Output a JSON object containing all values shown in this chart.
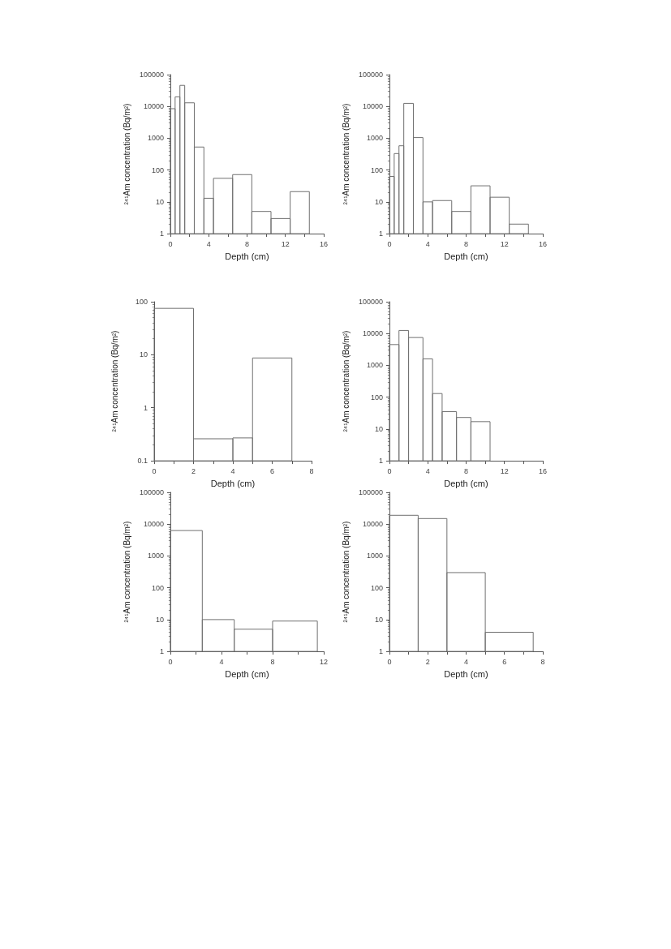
{
  "chart_data": [
    {
      "type": "histogram",
      "xlabel": "Depth (cm)",
      "ylabel": "²⁴¹Am concentration (Bq/m²)",
      "bins": [
        0,
        0.5,
        1,
        1.5,
        2.5,
        3.5,
        4.5,
        6.5,
        8.5,
        10.5,
        12.5,
        14.5
      ],
      "values": [
        8500,
        20000,
        46000,
        13000,
        530,
        13,
        55,
        72,
        5,
        3,
        21
      ],
      "color": "#707070",
      "log": "y",
      "grid": false,
      "xlim": [
        0,
        16
      ],
      "xticks": [
        0,
        {
          "value": 2,
          "label": null
        },
        4,
        {
          "value": 6,
          "label": null
        },
        8,
        {
          "value": 10,
          "label": null
        },
        12,
        {
          "value": 14,
          "label": null
        },
        16
      ],
      "ylim": [
        1,
        100000
      ],
      "yticks": [
        1,
        10,
        100,
        1000,
        10000,
        100000
      ]
    },
    {
      "type": "histogram",
      "xlabel": "Depth (cm)",
      "ylabel": "²⁴¹Am concentration (Bq/m²)",
      "bins": [
        0,
        0.5,
        1,
        1.5,
        2.5,
        3.5,
        4.5,
        6.5,
        8.5,
        10.5,
        12.5,
        14.5
      ],
      "values": [
        63,
        330,
        580,
        12500,
        1050,
        10,
        11,
        5,
        32,
        14,
        2
      ],
      "color": "#707070",
      "log": "y",
      "grid": false,
      "xlim": [
        0,
        16
      ],
      "xticks": [
        0,
        {
          "value": 2,
          "label": null
        },
        4,
        {
          "value": 6,
          "label": null
        },
        8,
        {
          "value": 10,
          "label": null
        },
        12,
        {
          "value": 14,
          "label": null
        },
        16
      ],
      "ylim": [
        1,
        100000
      ],
      "yticks": [
        1,
        10,
        100,
        1000,
        10000,
        100000
      ]
    },
    {
      "type": "histogram",
      "xlabel": "Depth (cm)",
      "ylabel": "²⁴¹Am concentration (Bq/m²)",
      "bins": [
        0,
        2,
        4,
        5,
        7
      ],
      "values": [
        75,
        0.26,
        0.27,
        8.7
      ],
      "color": "#707070",
      "log": "y",
      "grid": false,
      "xlim": [
        0,
        8
      ],
      "xticks": [
        0,
        {
          "value": 1,
          "label": null
        },
        2,
        {
          "value": 3,
          "label": null
        },
        4,
        {
          "value": 5,
          "label": null
        },
        6,
        {
          "value": 7,
          "label": null
        },
        8
      ],
      "ylim": [
        0.1,
        100
      ],
      "yticks": [
        0.1,
        1,
        10,
        100
      ]
    },
    {
      "type": "histogram",
      "xlabel": "Depth (cm)",
      "ylabel": "²⁴¹Am concentration (Bq/m²)",
      "bins": [
        0,
        1,
        2,
        3.5,
        4.5,
        5.5,
        7,
        8.5,
        10.5
      ],
      "values": [
        4500,
        12500,
        7500,
        1600,
        130,
        35,
        23,
        17
      ],
      "color": "#707070",
      "log": "y",
      "grid": false,
      "xlim": [
        0,
        16
      ],
      "xticks": [
        0,
        {
          "value": 2,
          "label": null
        },
        4,
        {
          "value": 6,
          "label": null
        },
        8,
        {
          "value": 10,
          "label": null
        },
        12,
        {
          "value": 14,
          "label": null
        },
        16
      ],
      "ylim": [
        1,
        100000
      ],
      "yticks": [
        1,
        10,
        100,
        1000,
        10000,
        100000
      ]
    },
    {
      "type": "histogram",
      "xlabel": "Depth (cm)",
      "ylabel": "²⁴¹Am concentration (Bq/m²)",
      "bins": [
        0,
        2.5,
        5,
        8,
        11.5
      ],
      "values": [
        6300,
        10,
        5,
        9
      ],
      "color": "#707070",
      "log": "y",
      "grid": false,
      "xlim": [
        0,
        12
      ],
      "xticks": [
        0,
        {
          "value": 2,
          "label": null
        },
        4,
        {
          "value": 6,
          "label": null
        },
        8,
        {
          "value": 10,
          "label": null
        },
        12
      ],
      "ylim": [
        1,
        100000
      ],
      "yticks": [
        1,
        10,
        100,
        1000,
        10000,
        100000
      ]
    },
    {
      "type": "histogram",
      "xlabel": "Depth (cm)",
      "ylabel": "²⁴¹Am concentration (Bq/m²)",
      "bins": [
        0,
        1.5,
        3,
        5,
        7.5
      ],
      "values": [
        19000,
        15000,
        300,
        4
      ],
      "color": "#707070",
      "log": "y",
      "grid": false,
      "xlim": [
        0,
        8
      ],
      "xticks": [
        0,
        {
          "value": 1,
          "label": null
        },
        2,
        {
          "value": 3,
          "label": null
        },
        4,
        {
          "value": 5,
          "label": null
        },
        6,
        {
          "value": 7,
          "label": null
        },
        8
      ],
      "ylim": [
        1,
        100000
      ],
      "yticks": [
        1,
        10,
        100,
        1000,
        10000,
        100000
      ]
    }
  ]
}
